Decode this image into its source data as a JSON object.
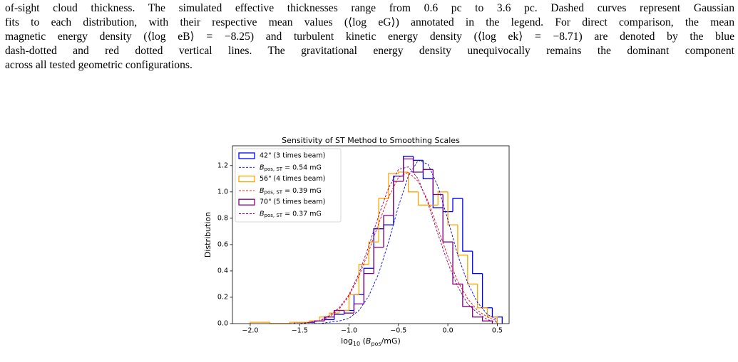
{
  "paragraph": {
    "lines": [
      "of-sight cloud thickness. The simulated effective thicknesses range from 0.6 pc to 3.6 pc. Dashed curves represent Gaussian",
      "fits to each distribution, with their respective mean values (⟨log eG⟩) annotated in the legend. For direct comparison, the mean",
      "magnetic energy density (⟨log eB⟩ = −8.25) and turbulent kinetic energy density (⟨log ek⟩ = −8.71) are denoted by the blue",
      "dash-dotted and red dotted vertical lines. The gravitational energy density unequivocally remains the dominant component",
      "across all tested geometric configurations."
    ]
  },
  "chart_data": {
    "type": "histogram",
    "title": "Sensitivity of ST Method to Smoothing Scales",
    "xlabel": "log10 (Bpos/mG)",
    "ylabel": "Distribution",
    "xlim": [
      -2.18,
      0.62
    ],
    "ylim": [
      0,
      1.35
    ],
    "xticks": [
      {
        "value": -2,
        "label": "−2.0"
      },
      {
        "value": -1.5,
        "label": "−1.5"
      },
      {
        "value": -1,
        "label": "−1.0"
      },
      {
        "value": -0.5,
        "label": "−0.5"
      },
      {
        "value": 0,
        "label": "0.0"
      },
      {
        "value": 0.5,
        "label": "0.5"
      }
    ],
    "yticks": [
      {
        "value": 0,
        "label": "0.0"
      },
      {
        "value": 0.2,
        "label": "0.2"
      },
      {
        "value": 0.4,
        "label": "0.4"
      },
      {
        "value": 0.6,
        "label": "0.6"
      },
      {
        "value": 0.8,
        "label": "0.8"
      },
      {
        "value": 1,
        "label": "1.0"
      },
      {
        "value": 1.2,
        "label": "1.2"
      }
    ],
    "legend": "upper left",
    "series": [
      {
        "name": "42\" (3 times beam)",
        "color": "#0000ff",
        "bins": [
          -1.55,
          -1.45,
          -1.35,
          -1.25,
          -1.15,
          -1.05,
          -0.95,
          -0.85,
          -0.75,
          -0.65,
          -0.55,
          -0.45,
          -0.35,
          -0.25,
          -0.15,
          -0.05,
          0.05,
          0.15,
          0.25,
          0.35,
          0.45,
          0.55
        ],
        "values": [
          0.01,
          0.01,
          0.02,
          0.03,
          0.07,
          0.1,
          0.22,
          0.42,
          0.72,
          0.75,
          1.12,
          1.27,
          1.24,
          1.1,
          0.88,
          0.85,
          0.95,
          0.55,
          0.38,
          0.12,
          0.05
        ]
      },
      {
        "name": "56\" (4 times beam)",
        "color": "#ffa500",
        "bins": [
          -2.0,
          -1.9,
          -1.8,
          -1.7,
          -1.6,
          -1.5,
          -1.4,
          -1.3,
          -1.2,
          -1.1,
          -1.0,
          -0.9,
          -0.8,
          -0.7,
          -0.6,
          -0.5,
          -0.4,
          -0.3,
          -0.2,
          -0.1,
          0.0,
          0.1,
          0.2,
          0.3,
          0.4,
          0.5
        ],
        "values": [
          0.01,
          0.01,
          0.0,
          0.0,
          0.01,
          0.01,
          0.02,
          0.05,
          0.08,
          0.1,
          0.22,
          0.45,
          0.62,
          0.95,
          1.14,
          1.15,
          1.0,
          0.9,
          0.9,
          1.0,
          0.75,
          0.52,
          0.3,
          0.12,
          0.05
        ]
      },
      {
        "name": "70\" (5 times beam)",
        "color": "#800080",
        "bins": [
          -1.35,
          -1.25,
          -1.15,
          -1.05,
          -0.95,
          -0.85,
          -0.75,
          -0.65,
          -0.55,
          -0.45,
          -0.35,
          -0.25,
          -0.15,
          -0.05,
          0.05,
          0.15,
          0.25,
          0.35,
          0.45
        ],
        "values": [
          0.02,
          0.05,
          0.1,
          0.08,
          0.15,
          0.38,
          0.58,
          0.82,
          1.08,
          1.25,
          1.15,
          1.17,
          0.98,
          0.62,
          0.3,
          0.13,
          0.05,
          0.02
        ]
      }
    ],
    "fits": [
      {
        "name": "Bpos, ST = 0.54 mG",
        "color": "#0000ff",
        "x": [
          -1.6,
          -1.5,
          -1.4,
          -1.3,
          -1.2,
          -1.1,
          -1.0,
          -0.9,
          -0.8,
          -0.7,
          -0.6,
          -0.5,
          -0.4,
          -0.3,
          -0.2,
          -0.1,
          0.0,
          0.1,
          0.2,
          0.3,
          0.4,
          0.5
        ],
        "values": [
          0.0,
          0.0,
          0.0,
          0.0,
          0.01,
          0.02,
          0.04,
          0.1,
          0.21,
          0.38,
          0.62,
          0.89,
          1.12,
          1.24,
          1.21,
          1.04,
          0.79,
          0.52,
          0.31,
          0.16,
          0.07,
          0.03
        ]
      },
      {
        "name": "Bpos, ST = 0.39 mG",
        "color": "#ff0000",
        "x": [
          -1.6,
          -1.5,
          -1.4,
          -1.3,
          -1.2,
          -1.1,
          -1.0,
          -0.9,
          -0.8,
          -0.7,
          -0.6,
          -0.5,
          -0.4,
          -0.3,
          -0.2,
          -0.1,
          0.0,
          0.1,
          0.2,
          0.3,
          0.4,
          0.5
        ],
        "values": [
          0.0,
          0.0,
          0.01,
          0.02,
          0.05,
          0.11,
          0.21,
          0.36,
          0.55,
          0.76,
          0.96,
          1.11,
          1.15,
          1.08,
          0.93,
          0.72,
          0.51,
          0.32,
          0.19,
          0.1,
          0.05,
          0.02
        ]
      },
      {
        "name": "Bpos, ST = 0.37 mG",
        "color": "#800080",
        "x": [
          -1.6,
          -1.5,
          -1.4,
          -1.3,
          -1.2,
          -1.1,
          -1.0,
          -0.9,
          -0.8,
          -0.7,
          -0.6,
          -0.5,
          -0.4,
          -0.3,
          -0.2,
          -0.1,
          0.0,
          0.1,
          0.2,
          0.3,
          0.4,
          0.5
        ],
        "values": [
          0.0,
          0.0,
          0.01,
          0.02,
          0.06,
          0.12,
          0.22,
          0.38,
          0.59,
          0.82,
          1.03,
          1.17,
          1.19,
          1.1,
          0.91,
          0.68,
          0.46,
          0.28,
          0.15,
          0.08,
          0.03,
          0.01
        ]
      }
    ]
  }
}
